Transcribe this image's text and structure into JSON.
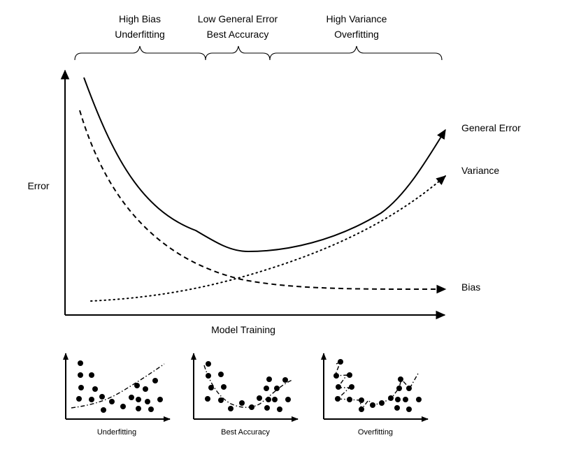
{
  "top_labels": {
    "high_bias": [
      "High Bias",
      "Underfitting"
    ],
    "low_error": [
      "Low General Error",
      "Best Accuracy"
    ],
    "high_variance": [
      "High Variance",
      "Overfitting"
    ]
  },
  "axis_labels": {
    "y": "Error",
    "x": "Model Training"
  },
  "curve_labels": {
    "general_error": "General Error",
    "variance": "Variance",
    "bias": "Bias"
  },
  "mini_plots": [
    {
      "caption": "Underfitting"
    },
    {
      "caption": "Best Accuracy"
    },
    {
      "caption": "Overfitting"
    }
  ],
  "colors": {
    "ink": "#000000",
    "background": "#ffffff"
  }
}
